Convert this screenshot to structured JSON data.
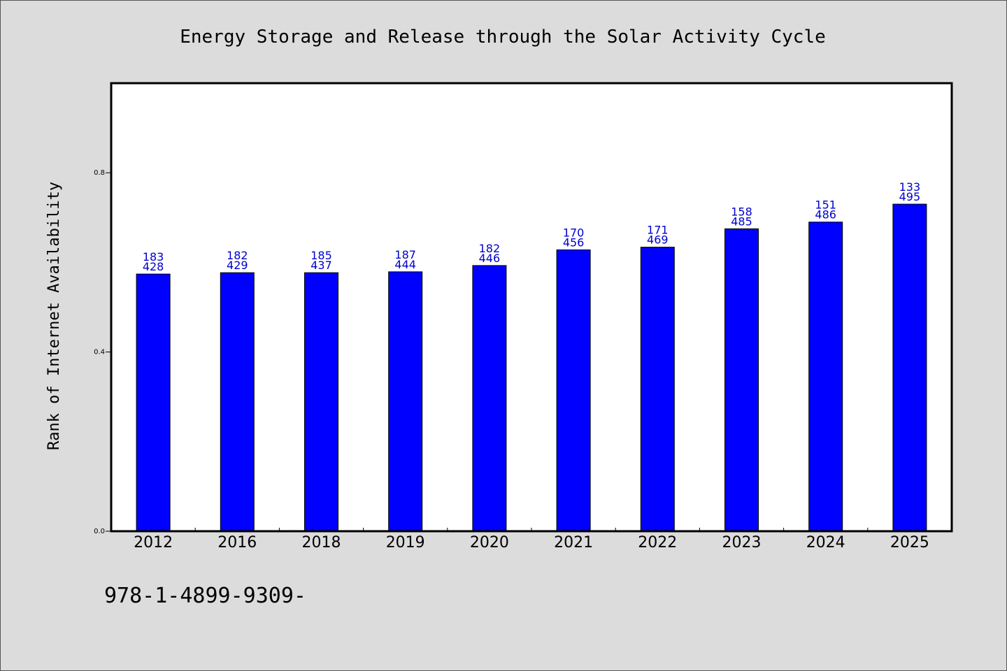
{
  "chart_data": {
    "type": "bar",
    "title": "Energy Storage and Release through the Solar Activity Cycle",
    "xlabel": "",
    "ylabel": "Rank of Internet Availability",
    "categories": [
      "2012",
      "2016",
      "2018",
      "2019",
      "2020",
      "2021",
      "2022",
      "2023",
      "2024",
      "2025"
    ],
    "values": [
      0.574,
      0.577,
      0.577,
      0.579,
      0.593,
      0.628,
      0.634,
      0.675,
      0.69,
      0.73
    ],
    "label_top": [
      "183",
      "182",
      "185",
      "187",
      "182",
      "170",
      "171",
      "158",
      "151",
      "133"
    ],
    "label_bottom": [
      "428",
      "429",
      "437",
      "444",
      "446",
      "456",
      "469",
      "485",
      "486",
      "495"
    ],
    "ylim": [
      0.0,
      1.0
    ],
    "yticks": [
      0.0,
      0.4,
      0.8
    ],
    "ytick_labels": [
      "0.0",
      "0.4",
      "0.8"
    ],
    "grid": false,
    "bar_color": "#0000ff",
    "label_color": "#0000cc",
    "footer_text": "978-1-4899-9309-"
  }
}
